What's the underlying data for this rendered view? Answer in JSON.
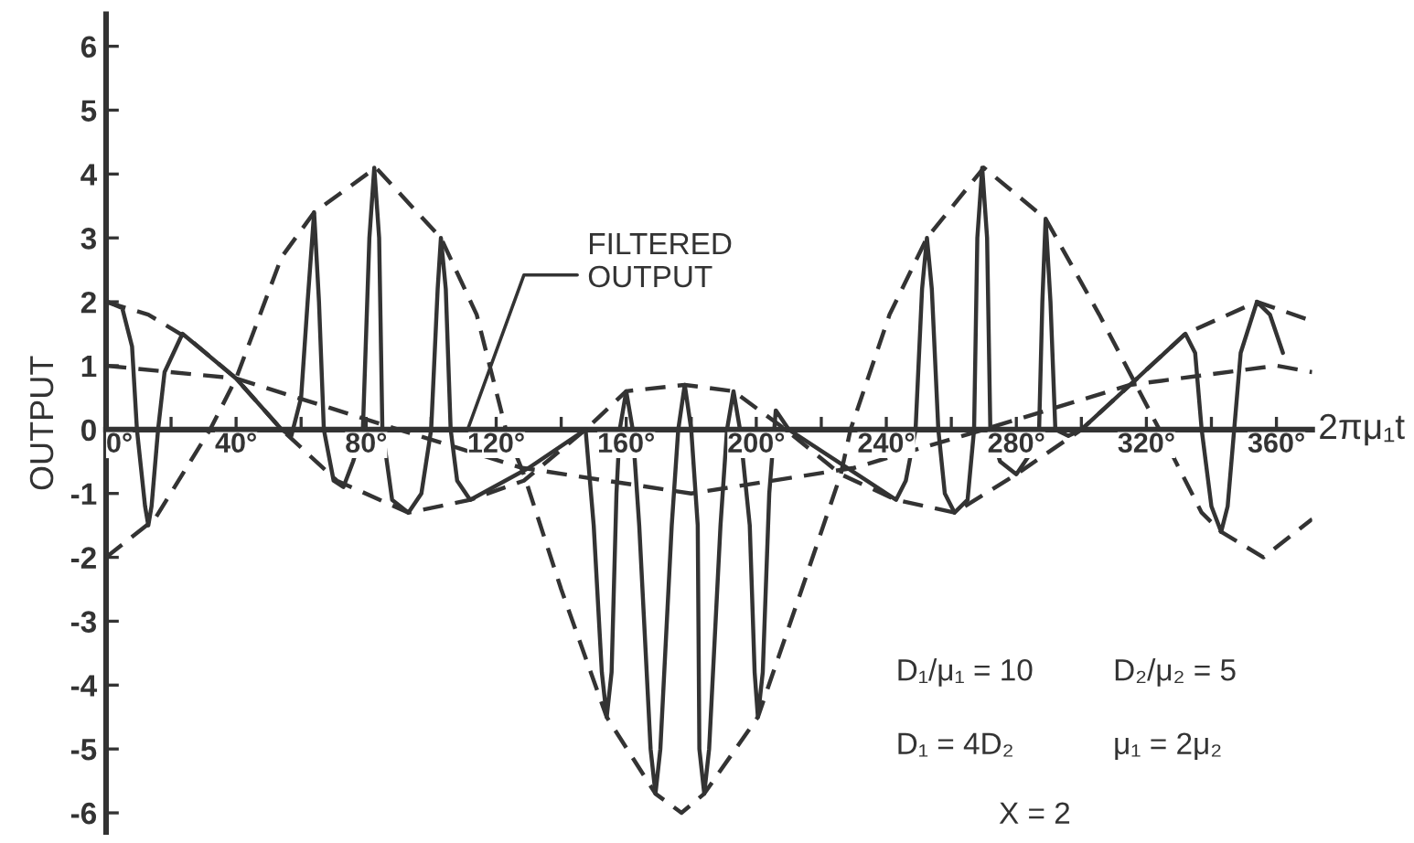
{
  "chart_data": {
    "type": "line",
    "ylabel": "OUTPUT",
    "xlabel": "2πμ₁t",
    "xlim": [
      0,
      371
    ],
    "ylim": [
      -6.3,
      6.5
    ],
    "xticks": [
      {
        "value": 0,
        "label": "0°"
      },
      {
        "value": 20,
        "label": null
      },
      {
        "value": 40,
        "label": "40°"
      },
      {
        "value": 60,
        "label": null
      },
      {
        "value": 80,
        "label": "80°"
      },
      {
        "value": 100,
        "label": null
      },
      {
        "value": 120,
        "label": "120°"
      },
      {
        "value": 140,
        "label": null
      },
      {
        "value": 160,
        "label": "160°"
      },
      {
        "value": 180,
        "label": null
      },
      {
        "value": 200,
        "label": "200°"
      },
      {
        "value": 220,
        "label": null
      },
      {
        "value": 240,
        "label": "240°"
      },
      {
        "value": 260,
        "label": null
      },
      {
        "value": 280,
        "label": "280°"
      },
      {
        "value": 300,
        "label": null
      },
      {
        "value": 320,
        "label": "320°"
      },
      {
        "value": 340,
        "label": null
      },
      {
        "value": 360,
        "label": "360°"
      }
    ],
    "yticks": [
      -6,
      -5,
      -4,
      -3,
      -2,
      -1,
      0,
      1,
      2,
      3,
      4,
      5,
      6
    ],
    "series": [
      {
        "color": "#333333",
        "line_style": "solid",
        "x": [
          0.5,
          5,
          8,
          9.5,
          12,
          13,
          14,
          16,
          18,
          23.5,
          40,
          54,
          57,
          60,
          62,
          64,
          65.5,
          67,
          70,
          73,
          76,
          79,
          81,
          82.5,
          84,
          85,
          88,
          93,
          97,
          100,
          102,
          103,
          104.5,
          106,
          108,
          112,
          130,
          147.5,
          150,
          152.5,
          154,
          155.5,
          157,
          158,
          160,
          162,
          164,
          167.5,
          169,
          170.5,
          174,
          176,
          178,
          180,
          182,
          182.5,
          184,
          185.5,
          189,
          191,
          193,
          195,
          198,
          199.5,
          200.5,
          202,
          204,
          206,
          210,
          243,
          246,
          249,
          251,
          252.5,
          254,
          256,
          258,
          261,
          265,
          267,
          268,
          269.5,
          271,
          272,
          275,
          280,
          284,
          287,
          288,
          289,
          290.5,
          292,
          296,
          300,
          315,
          332,
          335,
          337,
          340,
          343,
          345,
          347,
          349,
          354,
          358,
          362
        ],
        "values": [
          2.0,
          1.9,
          1.3,
          0,
          -1.2,
          -1.5,
          -1.2,
          0,
          0.9,
          1.5,
          0.8,
          0,
          -0.1,
          0.5,
          2.0,
          3.4,
          2.0,
          0,
          -0.8,
          -0.9,
          -0.5,
          0,
          3.0,
          4.1,
          3.0,
          0,
          -1.1,
          -1.3,
          -1.0,
          0,
          2.2,
          3.0,
          2.2,
          0,
          -0.8,
          -1.1,
          -0.6,
          0,
          -1.5,
          -3.8,
          -4.5,
          -3.8,
          -1.0,
          0,
          0.6,
          0,
          -1.5,
          -5.0,
          -5.7,
          -5.0,
          -1.5,
          0,
          0.7,
          0,
          -1.5,
          -5.0,
          -5.7,
          -5.0,
          -1.5,
          0,
          0.6,
          0,
          -1.5,
          -3.8,
          -4.5,
          -3.8,
          -1.0,
          0.3,
          0,
          -1.1,
          -0.8,
          0,
          2.2,
          3.0,
          2.2,
          0,
          -1.0,
          -1.3,
          -1.1,
          0,
          3.0,
          4.1,
          3.0,
          0,
          -0.5,
          -0.7,
          -0.4,
          0,
          2.0,
          3.3,
          2.0,
          0,
          -0.1,
          0,
          0.7,
          1.5,
          1.2,
          0,
          -1.2,
          -1.6,
          -1.2,
          0,
          1.2,
          2.0,
          1.8,
          1.2
        ]
      },
      {
        "color": "#333333",
        "line_style": "dashed",
        "x": [
          0,
          15,
          32,
          40,
          54,
          64,
          83,
          103,
          114,
          123,
          128.5,
          140,
          154,
          169,
          177,
          184,
          200.5,
          214,
          226,
          229,
          241,
          252.5,
          270,
          289,
          305.5,
          324,
          337,
          343,
          356,
          371
        ],
        "values": [
          -2.0,
          -1.4,
          0,
          0.8,
          2.7,
          3.4,
          4.1,
          3.0,
          1.8,
          0,
          -0.7,
          -2.5,
          -4.5,
          -5.7,
          -6.0,
          -5.7,
          -4.5,
          -2.5,
          -0.7,
          0,
          1.8,
          3.0,
          4.1,
          3.3,
          1.8,
          0,
          -1.3,
          -1.6,
          -2.0,
          -1.4
        ]
      },
      {
        "color": "#333333",
        "line_style": "dashed",
        "x": [
          0,
          13,
          26,
          40,
          54,
          71,
          93,
          112,
          128.5,
          147.5,
          160,
          178,
          193,
          209,
          226,
          243,
          261,
          280,
          300,
          315,
          332,
          354,
          371
        ],
        "values": [
          2.0,
          1.8,
          1.4,
          0.8,
          0,
          -0.8,
          -1.3,
          -1.1,
          -0.8,
          0,
          0.6,
          0.7,
          0.6,
          0,
          -0.7,
          -1.1,
          -1.3,
          -0.7,
          0,
          0.7,
          1.5,
          2.0,
          1.7
        ]
      },
      {
        "color": "#333333",
        "line_style": "dashed",
        "x": [
          0,
          40,
          90,
          128,
          180,
          230,
          270,
          315,
          360,
          371
        ],
        "values": [
          1.0,
          0.8,
          0,
          -0.6,
          -1.0,
          -0.6,
          0,
          0.7,
          1.0,
          0.9
        ]
      }
    ],
    "annotations": [
      "FILTERED\nOUTPUT",
      "D₁/μ₁ = 10",
      "D₂/μ₂ = 5",
      "D₁ = 4D₂",
      "μ₁ = 2μ₂",
      "X = 2"
    ]
  }
}
